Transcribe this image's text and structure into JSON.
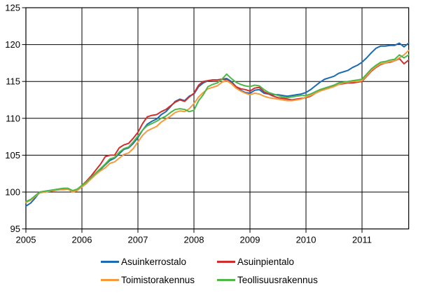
{
  "chart_data": {
    "type": "line",
    "title": "",
    "xlabel": "",
    "ylabel": "",
    "x_unit": "month",
    "x_start": "2005-01",
    "x_end": "2011-11",
    "months_total": 83,
    "ylim": [
      95,
      125
    ],
    "yticks": [
      95,
      100,
      105,
      110,
      115,
      120,
      125
    ],
    "xtick_labels": [
      "2005",
      "2006",
      "2007",
      "2008",
      "2009",
      "2010",
      "2011"
    ],
    "grid": true,
    "legend_position": "bottom",
    "series": [
      {
        "name": "Asuinkerrostalo",
        "color": "#1c6bb0",
        "values": [
          98.1,
          98.5,
          99.2,
          100.0,
          100.1,
          100.2,
          100.3,
          100.4,
          100.5,
          100.5,
          100.1,
          100.3,
          100.7,
          101.2,
          101.9,
          102.5,
          103.1,
          103.7,
          104.3,
          104.6,
          105.2,
          105.8,
          106.0,
          106.6,
          107.4,
          108.4,
          109.2,
          109.6,
          109.9,
          110.5,
          110.9,
          111.6,
          112.3,
          112.6,
          112.4,
          113.0,
          113.3,
          114.3,
          114.8,
          115.1,
          115.2,
          115.2,
          115.3,
          115.4,
          115.0,
          114.3,
          113.8,
          113.5,
          113.4,
          113.8,
          113.9,
          113.4,
          113.3,
          113.2,
          113.2,
          113.1,
          113.0,
          113.1,
          113.2,
          113.3,
          113.5,
          113.9,
          114.4,
          114.9,
          115.3,
          115.5,
          115.7,
          116.1,
          116.3,
          116.5,
          116.9,
          117.2,
          117.6,
          118.2,
          118.9,
          119.5,
          119.8,
          119.8,
          119.9,
          119.9,
          120.2,
          119.7,
          120.2
        ]
      },
      {
        "name": "Asuinpientalo",
        "color": "#d22d2d",
        "values": [
          98.6,
          98.9,
          99.5,
          100.0,
          100.0,
          100.1,
          100.2,
          100.3,
          100.4,
          100.4,
          100.1,
          100.3,
          100.9,
          101.5,
          102.2,
          103.0,
          103.8,
          104.8,
          105.0,
          105.0,
          106.0,
          106.4,
          106.6,
          107.3,
          108.1,
          109.3,
          110.2,
          110.4,
          110.5,
          110.9,
          111.2,
          111.7,
          112.2,
          112.5,
          112.3,
          112.9,
          113.4,
          114.5,
          115.0,
          115.1,
          115.2,
          115.2,
          115.3,
          115.2,
          114.8,
          114.3,
          114.0,
          113.9,
          113.7,
          114.1,
          114.2,
          113.6,
          113.3,
          113.0,
          112.8,
          112.7,
          112.6,
          112.5,
          112.6,
          112.7,
          112.8,
          113.0,
          113.4,
          113.7,
          114.0,
          114.2,
          114.4,
          114.6,
          114.7,
          114.8,
          114.8,
          114.9,
          115.0,
          115.7,
          116.4,
          116.9,
          117.3,
          117.5,
          117.6,
          117.8,
          118.1,
          117.4,
          117.9
        ]
      },
      {
        "name": "Toimistorakennus",
        "color": "#f59b3c",
        "values": [
          98.6,
          98.9,
          99.4,
          99.9,
          100.0,
          100.1,
          100.2,
          100.3,
          100.3,
          100.4,
          100.0,
          100.2,
          100.7,
          101.2,
          101.8,
          102.4,
          102.9,
          103.3,
          103.9,
          104.1,
          104.6,
          105.1,
          105.3,
          105.9,
          106.8,
          107.7,
          108.3,
          108.6,
          108.9,
          109.5,
          109.9,
          110.3,
          110.8,
          111.0,
          110.9,
          111.3,
          112.0,
          112.9,
          113.5,
          114.0,
          114.2,
          114.4,
          114.9,
          115.1,
          114.7,
          114.1,
          113.7,
          113.4,
          113.2,
          113.4,
          113.3,
          113.0,
          112.8,
          112.7,
          112.6,
          112.5,
          112.4,
          112.4,
          112.5,
          112.6,
          112.9,
          113.1,
          113.4,
          113.7,
          113.9,
          114.1,
          114.3,
          114.6,
          114.8,
          114.9,
          115.0,
          115.0,
          115.1,
          115.8,
          116.5,
          117.0,
          117.4,
          117.5,
          117.7,
          117.8,
          118.2,
          118.6,
          119.2
        ]
      },
      {
        "name": "Teollisuusrakennus",
        "color": "#4db848",
        "values": [
          98.7,
          99.0,
          99.5,
          100.0,
          100.1,
          100.2,
          100.3,
          100.4,
          100.5,
          100.5,
          100.2,
          100.4,
          100.9,
          101.4,
          102.0,
          102.6,
          103.2,
          103.8,
          104.5,
          104.7,
          105.4,
          105.9,
          106.1,
          106.8,
          107.6,
          108.4,
          109.0,
          109.3,
          109.6,
          110.0,
          110.3,
          110.8,
          111.2,
          111.3,
          111.2,
          110.9,
          111.1,
          112.4,
          113.2,
          114.3,
          114.6,
          114.8,
          115.3,
          116.0,
          115.4,
          114.9,
          114.6,
          114.4,
          114.3,
          114.5,
          114.4,
          113.9,
          113.5,
          113.3,
          113.1,
          112.9,
          112.8,
          112.9,
          113.0,
          113.1,
          113.1,
          113.3,
          113.6,
          113.9,
          114.1,
          114.3,
          114.5,
          114.8,
          114.9,
          115.0,
          115.1,
          115.2,
          115.3,
          116.0,
          116.7,
          117.2,
          117.6,
          117.7,
          117.9,
          118.0,
          118.6,
          118.2,
          118.6
        ]
      }
    ]
  },
  "legend": {
    "items": [
      {
        "label": "Asuinkerrostalo",
        "color": "#1c6bb0"
      },
      {
        "label": "Asuinpientalo",
        "color": "#d22d2d"
      },
      {
        "label": "Toimistorakennus",
        "color": "#f59b3c"
      },
      {
        "label": "Teollisuusrakennus",
        "color": "#4db848"
      }
    ]
  }
}
